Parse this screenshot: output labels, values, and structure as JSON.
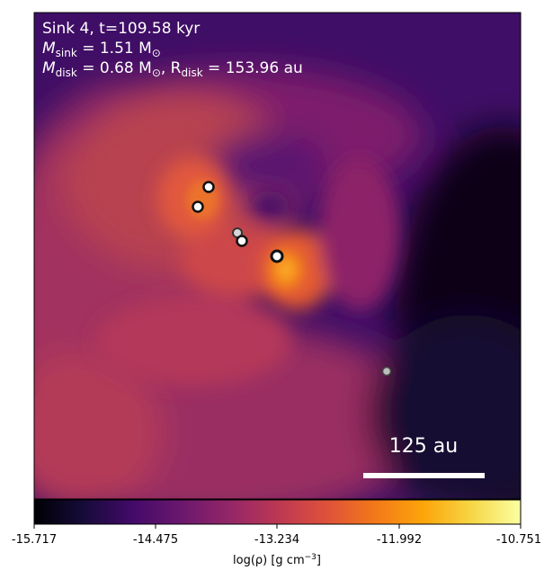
{
  "annotation": {
    "line1": "Sink 4, t=109.58 kyr",
    "line2_prefix": "M",
    "line2_sub": "sink",
    "line2_rest": " = 1.51 M",
    "line2_sun": "⊙",
    "line3_prefix": "M",
    "line3_sub": "disk",
    "line3_mid": " = 0.68 M",
    "line3_sun": "⊙",
    "line3_sep": ", R",
    "line3_sub2": "disk",
    "line3_rest": " = 153.96 au"
  },
  "scalebar": {
    "label": "125 au"
  },
  "colorbar": {
    "ticks": [
      "-15.717",
      "-14.475",
      "-13.234",
      "-11.992",
      "-10.751"
    ],
    "label_prefix": "log(ρ) [g cm",
    "label_sup": "−3",
    "label_suffix": "]",
    "colormap": "inferno"
  },
  "colors": {
    "text": "#ffffff",
    "tick_text": "#000000",
    "frame": "#000000",
    "sink_fill_primary": "#ffffff",
    "sink_fill_secondary": "#cccccc"
  },
  "sinks": [
    {
      "id": "sink-main",
      "role": "primary"
    },
    {
      "id": "sink-a",
      "role": "companion"
    },
    {
      "id": "sink-b",
      "role": "companion"
    },
    {
      "id": "sink-c",
      "role": "companion"
    },
    {
      "id": "sink-d",
      "role": "companion"
    },
    {
      "id": "sink-e",
      "role": "distant"
    }
  ]
}
